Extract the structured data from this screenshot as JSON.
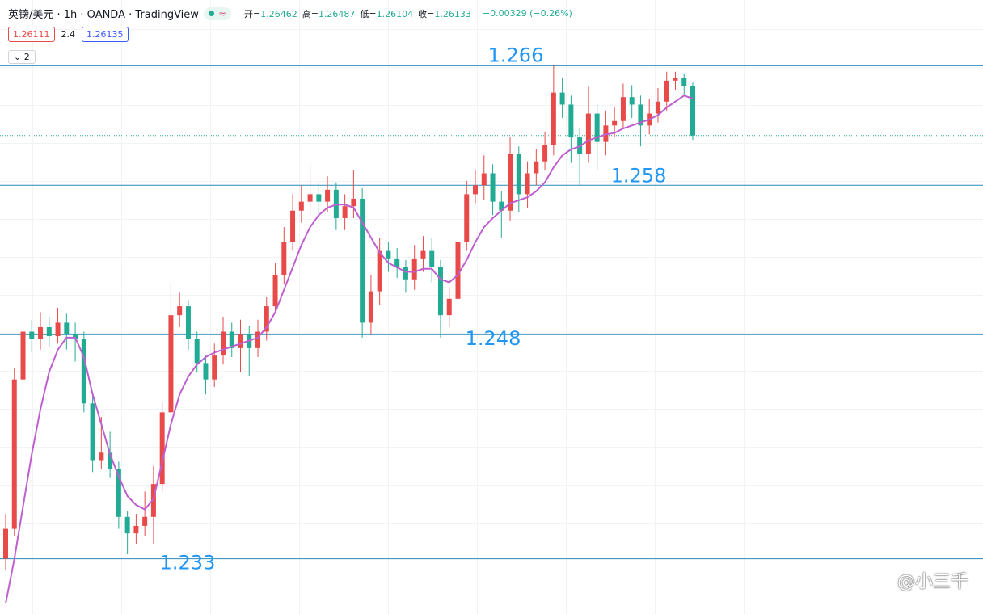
{
  "chart_data": {
    "type": "candlestick",
    "symbol": "英镑/美元 · 1h · OANDA · TradingView",
    "status_icon": "≈",
    "ohlc_legend": [
      {
        "label": "开=",
        "value": "1.26462"
      },
      {
        "label": "高=",
        "value": "1.26487"
      },
      {
        "label": "低=",
        "value": "1.26104"
      },
      {
        "label": "收=",
        "value": "1.26133"
      }
    ],
    "change": "−0.00329 (−0.26%)",
    "bid": "1.26111",
    "spread": "2.4",
    "ask": "1.26135",
    "indicator_count": "2",
    "watermark": "@小三千",
    "ylim": [
      1.2293,
      1.2704
    ],
    "up_color": "#e84a4a",
    "down_color": "#22ab94",
    "ma_color": "#bf5fcf",
    "level_color": "#2a8ab8",
    "level_label_color": "#2196f3",
    "levels": [
      1.266,
      1.258,
      1.248,
      1.233
    ],
    "open": [
      1.233,
      1.235,
      1.245,
      1.2482,
      1.2477,
      1.2485,
      1.2479,
      1.2488,
      1.248,
      1.2477,
      1.2434,
      1.2396,
      1.2401,
      1.239,
      1.2358,
      1.2347,
      1.2352,
      1.2358,
      1.238,
      1.2428,
      1.2493,
      1.2499,
      1.2477,
      1.2461,
      1.245,
      1.2466,
      1.2482,
      1.2471,
      1.248,
      1.2471,
      1.2482,
      1.2499,
      1.252,
      1.2542,
      1.2563,
      1.2569,
      1.2574,
      1.2569,
      1.2577,
      1.2558,
      1.2566,
      1.2571,
      1.2488,
      1.2509,
      1.2536,
      1.2531,
      1.2525,
      1.2517,
      1.2531,
      1.2536,
      1.2525,
      1.2493,
      1.2504,
      1.2542,
      1.2574,
      1.258,
      1.2588,
      1.2569,
      1.2563,
      1.2601,
      1.2574,
      1.2588,
      1.2596,
      1.2607,
      1.2642,
      1.2634,
      1.2612,
      1.2601,
      1.2628,
      1.2609,
      1.262,
      1.2623,
      1.2639,
      1.2634,
      1.262,
      1.2628,
      1.2636,
      1.265,
      1.2652,
      1.26462
    ],
    "high": [
      1.236,
      1.2458,
      1.2492,
      1.249,
      1.2495,
      1.2492,
      1.2498,
      1.2494,
      1.2488,
      1.2482,
      1.244,
      1.2425,
      1.2415,
      1.2395,
      1.2362,
      1.236,
      1.2375,
      1.2392,
      1.2435,
      1.2515,
      1.2508,
      1.2503,
      1.2482,
      1.2466,
      1.2474,
      1.2492,
      1.2488,
      1.249,
      1.2486,
      1.249,
      1.2505,
      1.2528,
      1.2552,
      1.2574,
      1.258,
      1.2594,
      1.2582,
      1.2586,
      1.2582,
      1.2574,
      1.259,
      1.2578,
      1.252,
      1.2545,
      1.2542,
      1.2538,
      1.253,
      1.254,
      1.2546,
      1.2545,
      1.253,
      1.2512,
      1.255,
      1.2583,
      1.259,
      1.26,
      1.2594,
      1.2576,
      1.2612,
      1.2606,
      1.2596,
      1.2604,
      1.2616,
      1.266,
      1.2652,
      1.264,
      1.2618,
      1.2646,
      1.2634,
      1.263,
      1.2632,
      1.2648,
      1.2647,
      1.264,
      1.2638,
      1.2645,
      1.2656,
      1.2656,
      1.2655,
      1.26487
    ],
    "low": [
      1.2322,
      1.2345,
      1.244,
      1.2468,
      1.247,
      1.2472,
      1.2474,
      1.247,
      1.2462,
      1.2428,
      1.2388,
      1.239,
      1.2384,
      1.235,
      1.2333,
      1.234,
      1.2345,
      1.234,
      1.2375,
      1.2422,
      1.2485,
      1.247,
      1.2455,
      1.244,
      1.2445,
      1.246,
      1.2465,
      1.2455,
      1.2452,
      1.2465,
      1.2476,
      1.2494,
      1.2514,
      1.2536,
      1.2555,
      1.256,
      1.256,
      1.2562,
      1.255,
      1.255,
      1.2558,
      1.2478,
      1.248,
      1.25,
      1.2522,
      1.2518,
      1.2508,
      1.251,
      1.2522,
      1.2515,
      1.2478,
      1.2485,
      1.2498,
      1.2536,
      1.2568,
      1.257,
      1.256,
      1.2545,
      1.2556,
      1.2562,
      1.2565,
      1.258,
      1.259,
      1.26,
      1.2625,
      1.2595,
      1.258,
      1.2595,
      1.259,
      1.26,
      1.2612,
      1.2618,
      1.2625,
      1.2606,
      1.2614,
      1.2622,
      1.263,
      1.2644,
      1.264,
      1.26104
    ],
    "close": [
      1.235,
      1.245,
      1.2482,
      1.2477,
      1.2485,
      1.2479,
      1.2488,
      1.248,
      1.2477,
      1.2434,
      1.2396,
      1.2401,
      1.239,
      1.2358,
      1.2347,
      1.2352,
      1.2358,
      1.238,
      1.2428,
      1.2493,
      1.2499,
      1.2477,
      1.2461,
      1.245,
      1.2466,
      1.2482,
      1.2471,
      1.248,
      1.2471,
      1.2482,
      1.2499,
      1.252,
      1.2542,
      1.2563,
      1.2569,
      1.2574,
      1.2569,
      1.2577,
      1.2558,
      1.2566,
      1.2571,
      1.2488,
      1.2509,
      1.2536,
      1.2531,
      1.2525,
      1.2517,
      1.2531,
      1.2536,
      1.2525,
      1.2493,
      1.2504,
      1.2542,
      1.2574,
      1.258,
      1.2588,
      1.2569,
      1.2563,
      1.2601,
      1.2574,
      1.2588,
      1.2596,
      1.2607,
      1.2642,
      1.2634,
      1.2612,
      1.2601,
      1.2628,
      1.2609,
      1.262,
      1.2623,
      1.2639,
      1.2634,
      1.262,
      1.2628,
      1.2636,
      1.265,
      1.2652,
      1.26462,
      1.26133
    ],
    "ma": [
      1.23,
      1.233,
      1.2365,
      1.24,
      1.243,
      1.2455,
      1.247,
      1.2478,
      1.2478,
      1.2465,
      1.244,
      1.242,
      1.24,
      1.2385,
      1.2372,
      1.2366,
      1.2363,
      1.237,
      1.2395,
      1.242,
      1.244,
      1.2452,
      1.246,
      1.2465,
      1.2468,
      1.247,
      1.2472,
      1.2474,
      1.2476,
      1.2478,
      1.2485,
      1.2495,
      1.251,
      1.2525,
      1.254,
      1.2552,
      1.256,
      1.2565,
      1.2567,
      1.2567,
      1.2565,
      1.2555,
      1.2545,
      1.2535,
      1.2528,
      1.2525,
      1.2522,
      1.2522,
      1.2524,
      1.2524,
      1.2517,
      1.2515,
      1.252,
      1.253,
      1.2542,
      1.2552,
      1.2558,
      1.2563,
      1.2568,
      1.257,
      1.2572,
      1.2576,
      1.2582,
      1.2592,
      1.26,
      1.2604,
      1.2606,
      1.261,
      1.2612,
      1.2614,
      1.2615,
      1.2618,
      1.262,
      1.2622,
      1.2624,
      1.2627,
      1.2632,
      1.2636,
      1.264,
      1.2638
    ]
  }
}
